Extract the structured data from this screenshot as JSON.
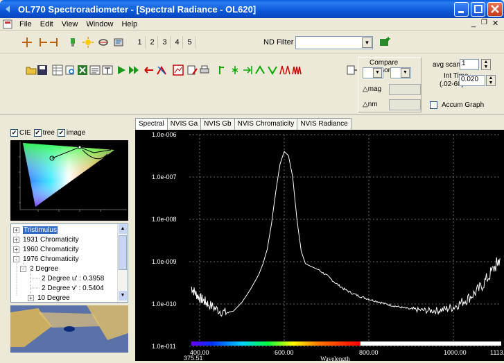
{
  "window": {
    "title": "OL770 Spectroradiometer - [Spectral Radiance - OL620]"
  },
  "menu": {
    "items": [
      "File",
      "Edit",
      "View",
      "Window",
      "Help"
    ]
  },
  "toolbar1": {
    "page_numbers": [
      "1",
      "2",
      "3",
      "4",
      "5"
    ],
    "nd_filter_label": "ND Filter",
    "nd_filter_value": ""
  },
  "toolbar2": {
    "compare_cursors_label": "Compare Cursors",
    "delta_mag_label": "mag",
    "delta_nm_label": "nm",
    "delta_symbol": "△",
    "avg_scans_label": "avg scans",
    "avg_scans_value": "1",
    "int_time_label": "Int Time",
    "int_time_range": "(.02-60)",
    "int_time_value": "0.020",
    "accum_graph_label": "Accum Graph"
  },
  "left": {
    "checks": [
      {
        "label": "CIE",
        "checked": true
      },
      {
        "label": "tree",
        "checked": true
      },
      {
        "label": "image",
        "checked": true
      }
    ],
    "tree": [
      {
        "label": "Tristimulus",
        "sign": "+",
        "selected": true
      },
      {
        "label": "1931 Chromaticity",
        "sign": "+"
      },
      {
        "label": "1960 Chromaticity",
        "sign": "+"
      },
      {
        "label": "1976 Chromaticity",
        "sign": "-"
      },
      {
        "label": "2 Degree",
        "sign": "-"
      },
      {
        "label": "2 Degree u' : 0.3958",
        "sign": ""
      },
      {
        "label": "2 Degree v' : 0.5404",
        "sign": ""
      },
      {
        "label": "10 Degree",
        "sign": "+"
      }
    ]
  },
  "tabs": [
    "Spectral",
    "NVIS Ga",
    "NVIS Gb",
    "NVIS Chromaticity",
    "NVIS Radiance"
  ],
  "chart_data": {
    "type": "line",
    "y_scale": "log",
    "y_ticks": [
      "1.0e-006",
      "1.0e-007",
      "1.0e-008",
      "1.0e-009",
      "1.0e-010",
      "1.0e-011"
    ],
    "x_ticks": [
      "400.00",
      "600.00",
      "800.00",
      "1000.00"
    ],
    "x_min_label": "375.51",
    "x_max_label": "1113.0",
    "xlabel": "Wavelength",
    "xlim": [
      375.51,
      1113.0
    ],
    "ylim": [
      1e-11,
      1e-06
    ],
    "grid": true,
    "line_color": "#ffffff",
    "series": [
      {
        "x": [
          380,
          390,
          400,
          410,
          420,
          440,
          460,
          480,
          500,
          520,
          540,
          550,
          560,
          570,
          580,
          590,
          600,
          610,
          620,
          630,
          640,
          650,
          660,
          680,
          700,
          720,
          740,
          760,
          780,
          800,
          820,
          840,
          860,
          880,
          900,
          920,
          940,
          960,
          980,
          1000,
          1020,
          1040,
          1060,
          1080,
          1100,
          1110
        ],
        "y": [
          2.5e-10,
          1.8e-10,
          1.4e-10,
          1.2e-10,
          1e-10,
          7.5e-11,
          6.2e-11,
          6.8e-11,
          1.1e-10,
          2.2e-10,
          5e-10,
          9e-10,
          2e-09,
          8e-09,
          4.5e-08,
          2e-07,
          4e-07,
          3.2e-07,
          1e-07,
          1e-08,
          1.8e-09,
          9e-10,
          8e-10,
          6.5e-10,
          4.8e-10,
          3.2e-10,
          2.3e-10,
          1.8e-10,
          1.5e-10,
          1.3e-10,
          1.15e-10,
          1e-10,
          9e-11,
          8.2e-11,
          7.5e-11,
          7.2e-11,
          7e-11,
          7e-11,
          7.5e-11,
          8.5e-11,
          1.1e-10,
          1.5e-10,
          2.2e-10,
          4e-10,
          8e-10,
          1.2e-09
        ]
      }
    ]
  },
  "colors": {
    "titlebar": "#0b58d8",
    "chrome": "#ece9d8",
    "plot_bg": "#000000",
    "trace": "#ffffff"
  }
}
